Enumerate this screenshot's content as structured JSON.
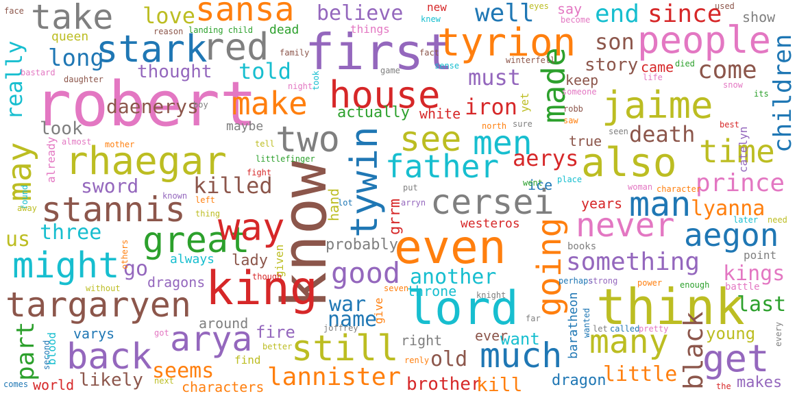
{
  "palette": {
    "blue": "#1f77b4",
    "orange": "#ff7f0e",
    "green": "#2ca02c",
    "red": "#d62728",
    "purple": "#9467bd",
    "brown": "#8c564b",
    "pink": "#e377c2",
    "gray": "#7f7f7f",
    "olive": "#bcbd22",
    "cyan": "#17becf"
  },
  "words": [
    {
      "id": "robert",
      "text": "robert",
      "color": "pink"
    },
    {
      "id": "know",
      "text": "know",
      "color": "brown"
    },
    {
      "id": "even",
      "text": "even",
      "color": "orange"
    },
    {
      "id": "king",
      "text": "king",
      "color": "red"
    },
    {
      "id": "think",
      "text": "think",
      "color": "olive"
    },
    {
      "id": "first",
      "text": "first",
      "color": "purple"
    },
    {
      "id": "tyrion",
      "text": "tyrion",
      "color": "orange"
    },
    {
      "id": "also",
      "text": "also",
      "color": "olive"
    },
    {
      "id": "lord",
      "text": "lord",
      "color": "cyan"
    },
    {
      "id": "rhaegar",
      "text": "rhaegar",
      "color": "olive"
    },
    {
      "id": "targaryen",
      "text": "targaryen",
      "color": "brown"
    },
    {
      "id": "stark",
      "text": "stark",
      "color": "blue"
    },
    {
      "id": "red",
      "text": "red",
      "color": "gray"
    },
    {
      "id": "people",
      "text": "people",
      "color": "pink"
    },
    {
      "id": "jaime",
      "text": "jaime",
      "color": "olive"
    },
    {
      "id": "house",
      "text": "house",
      "color": "red"
    },
    {
      "id": "cersei",
      "text": "cersei",
      "color": "gray"
    },
    {
      "id": "take",
      "text": "take",
      "color": "gray"
    },
    {
      "id": "sansa",
      "text": "sansa",
      "color": "orange"
    },
    {
      "id": "stannis",
      "text": "stannis",
      "color": "brown"
    },
    {
      "id": "great",
      "text": "great",
      "color": "green"
    },
    {
      "id": "might",
      "text": "might",
      "color": "cyan"
    },
    {
      "id": "still",
      "text": "still",
      "color": "olive"
    },
    {
      "id": "much",
      "text": "much",
      "color": "blue"
    },
    {
      "id": "many",
      "text": "many",
      "color": "olive"
    },
    {
      "id": "arya",
      "text": "arya",
      "color": "purple"
    },
    {
      "id": "back",
      "text": "back",
      "color": "purple"
    },
    {
      "id": "going",
      "text": "going",
      "color": "orange"
    },
    {
      "id": "tywin",
      "text": "tywin",
      "color": "blue"
    },
    {
      "id": "may",
      "text": "may",
      "color": "olive"
    },
    {
      "id": "way",
      "text": "way",
      "color": "red"
    },
    {
      "id": "make",
      "text": "make",
      "color": "orange"
    },
    {
      "id": "father",
      "text": "father",
      "color": "cyan"
    },
    {
      "id": "see",
      "text": "see",
      "color": "olive"
    },
    {
      "id": "men",
      "text": "men",
      "color": "cyan"
    },
    {
      "id": "two",
      "text": "two",
      "color": "gray"
    },
    {
      "id": "man",
      "text": "man",
      "color": "blue"
    },
    {
      "id": "time",
      "text": "time",
      "color": "olive"
    },
    {
      "id": "never",
      "text": "never",
      "color": "pink"
    },
    {
      "id": "aegon",
      "text": "aegon",
      "color": "blue"
    },
    {
      "id": "get",
      "text": "get",
      "color": "purple"
    },
    {
      "id": "made",
      "text": "made",
      "color": "green"
    },
    {
      "id": "lannister",
      "text": "lannister",
      "color": "orange"
    },
    {
      "id": "good",
      "text": "good",
      "color": "purple"
    },
    {
      "id": "prince",
      "text": "prince",
      "color": "pink"
    },
    {
      "id": "something",
      "text": "something",
      "color": "purple"
    },
    {
      "id": "black",
      "text": "black",
      "color": "brown"
    },
    {
      "id": "part",
      "text": "part",
      "color": "green"
    },
    {
      "id": "children",
      "text": "children",
      "color": "blue"
    },
    {
      "id": "come",
      "text": "come",
      "color": "brown"
    },
    {
      "id": "end",
      "text": "end",
      "color": "cyan"
    },
    {
      "id": "since",
      "text": "since",
      "color": "red"
    },
    {
      "id": "well",
      "text": "well",
      "color": "blue"
    },
    {
      "id": "long",
      "text": "long",
      "color": "blue"
    },
    {
      "id": "love",
      "text": "love",
      "color": "olive"
    },
    {
      "id": "believe",
      "text": "believe",
      "color": "purple"
    },
    {
      "id": "told",
      "text": "told",
      "color": "cyan"
    },
    {
      "id": "really",
      "text": "really",
      "color": "cyan"
    },
    {
      "id": "son",
      "text": "son",
      "color": "brown"
    },
    {
      "id": "must",
      "text": "must",
      "color": "purple"
    },
    {
      "id": "iron",
      "text": "iron",
      "color": "red"
    },
    {
      "id": "daenerys",
      "text": "daenerys",
      "color": "brown"
    },
    {
      "id": "death",
      "text": "death",
      "color": "brown"
    },
    {
      "id": "aerys",
      "text": "aerys",
      "color": "red"
    },
    {
      "id": "sword",
      "text": "sword",
      "color": "purple"
    },
    {
      "id": "killed",
      "text": "killed",
      "color": "brown"
    },
    {
      "id": "lyanna",
      "text": "lyanna",
      "color": "orange"
    },
    {
      "id": "three",
      "text": "three",
      "color": "cyan"
    },
    {
      "id": "us",
      "text": "us",
      "color": "olive"
    },
    {
      "id": "kings",
      "text": "kings",
      "color": "pink"
    },
    {
      "id": "last",
      "text": "last",
      "color": "green"
    },
    {
      "id": "another",
      "text": "another",
      "color": "cyan"
    },
    {
      "id": "war",
      "text": "war",
      "color": "blue"
    },
    {
      "id": "name",
      "text": "name",
      "color": "blue"
    },
    {
      "id": "seems",
      "text": "seems",
      "color": "orange"
    },
    {
      "id": "little",
      "text": "little",
      "color": "orange"
    },
    {
      "id": "old",
      "text": "old",
      "color": "brown"
    },
    {
      "id": "story",
      "text": "story",
      "color": "brown"
    },
    {
      "id": "thought",
      "text": "thought",
      "color": "purple"
    },
    {
      "id": "look",
      "text": "look",
      "color": "gray"
    },
    {
      "id": "go",
      "text": "go",
      "color": "purple"
    },
    {
      "id": "probably",
      "text": "probably",
      "color": "gray"
    },
    {
      "id": "dragons",
      "text": "dragons",
      "color": "purple"
    },
    {
      "id": "lady",
      "text": "lady",
      "color": "brown"
    },
    {
      "id": "always",
      "text": "always",
      "color": "cyan"
    },
    {
      "id": "fire",
      "text": "fire",
      "color": "purple"
    },
    {
      "id": "want",
      "text": "want",
      "color": "cyan"
    },
    {
      "id": "young",
      "text": "young",
      "color": "olive"
    },
    {
      "id": "likely",
      "text": "likely",
      "color": "brown"
    },
    {
      "id": "characters",
      "text": "characters",
      "color": "orange"
    },
    {
      "id": "brother",
      "text": "brother",
      "color": "red"
    },
    {
      "id": "kill",
      "text": "kill",
      "color": "orange"
    },
    {
      "id": "dragon",
      "text": "dragon",
      "color": "blue"
    },
    {
      "id": "makes",
      "text": "makes",
      "color": "purple"
    },
    {
      "id": "world",
      "text": "world",
      "color": "red"
    },
    {
      "id": "varys",
      "text": "varys",
      "color": "blue"
    },
    {
      "id": "around",
      "text": "around",
      "color": "gray"
    },
    {
      "id": "throne",
      "text": "throne",
      "color": "cyan"
    },
    {
      "id": "ever",
      "text": "ever",
      "color": "brown"
    },
    {
      "id": "right",
      "text": "right",
      "color": "gray"
    },
    {
      "id": "actually",
      "text": "actually",
      "color": "green"
    },
    {
      "id": "white",
      "text": "white",
      "color": "red"
    },
    {
      "id": "keep",
      "text": "keep",
      "color": "brown"
    },
    {
      "id": "came",
      "text": "came",
      "color": "red"
    },
    {
      "id": "ice",
      "text": "ice",
      "color": "blue"
    },
    {
      "id": "years",
      "text": "years",
      "color": "red"
    },
    {
      "id": "hand",
      "text": "hand",
      "color": "olive"
    },
    {
      "id": "grrm",
      "text": "grrm",
      "color": "red"
    },
    {
      "id": "westeros",
      "text": "westeros",
      "color": "red"
    },
    {
      "id": "true",
      "text": "true",
      "color": "brown"
    },
    {
      "id": "maybe",
      "text": "maybe",
      "color": "gray"
    },
    {
      "id": "baratheon",
      "text": "baratheon",
      "color": "blue"
    },
    {
      "id": "dead",
      "text": "dead",
      "color": "green"
    },
    {
      "id": "queen",
      "text": "queen",
      "color": "olive"
    },
    {
      "id": "say",
      "text": "say",
      "color": "pink"
    },
    {
      "id": "show",
      "text": "show",
      "color": "gray"
    },
    {
      "id": "new",
      "text": "new",
      "color": "red"
    },
    {
      "id": "things",
      "text": "things",
      "color": "pink"
    },
    {
      "id": "yet",
      "text": "yet",
      "color": "olive"
    },
    {
      "id": "catelyn",
      "text": "catelyn",
      "color": "purple"
    },
    {
      "id": "given",
      "text": "given",
      "color": "olive"
    },
    {
      "id": "give",
      "text": "give",
      "color": "orange"
    },
    {
      "id": "already",
      "text": "already",
      "color": "pink"
    },
    {
      "id": "blood",
      "text": "blood",
      "color": "cyan"
    },
    {
      "id": "find",
      "text": "find",
      "color": "olive"
    },
    {
      "id": "point",
      "text": "point",
      "color": "gray"
    },
    {
      "id": "books",
      "text": "books",
      "color": "gray"
    },
    {
      "id": "battle",
      "text": "battle",
      "color": "pink"
    },
    {
      "id": "face",
      "text": "face",
      "color": "brown"
    },
    {
      "id": "reason",
      "text": "reason",
      "color": "brown"
    },
    {
      "id": "landing child",
      "text": "landing child",
      "color": "green"
    },
    {
      "id": "knew",
      "text": "knew",
      "color": "cyan"
    },
    {
      "id": "eyes",
      "text": "eyes",
      "color": "olive"
    },
    {
      "id": "become",
      "text": "become",
      "color": "pink"
    },
    {
      "id": "used",
      "text": "used",
      "color": "brown"
    },
    {
      "id": "family",
      "text": "family",
      "color": "brown"
    },
    {
      "id": "fact",
      "text": "fact",
      "color": "brown"
    },
    {
      "id": "winterfell",
      "text": "winterfell",
      "color": "brown"
    },
    {
      "id": "bastard",
      "text": "bastard",
      "color": "pink"
    },
    {
      "id": "game",
      "text": "game",
      "color": "gray"
    },
    {
      "id": "sense",
      "text": "sense",
      "color": "cyan"
    },
    {
      "id": "died",
      "text": "died",
      "color": "green"
    },
    {
      "id": "daughter",
      "text": "daughter",
      "color": "brown"
    },
    {
      "id": "life",
      "text": "life",
      "color": "pink"
    },
    {
      "id": "snow",
      "text": "snow",
      "color": "pink"
    },
    {
      "id": "its",
      "text": "its",
      "color": "green"
    },
    {
      "id": "night",
      "text": "night",
      "color": "pink"
    },
    {
      "id": "took",
      "text": "took",
      "color": "cyan"
    },
    {
      "id": "someone",
      "text": "someone",
      "color": "pink"
    },
    {
      "id": "boy",
      "text": "boy",
      "color": "gray"
    },
    {
      "id": "robb",
      "text": "robb",
      "color": "brown"
    },
    {
      "id": "saw",
      "text": "saw",
      "color": "orange"
    },
    {
      "id": "north",
      "text": "north",
      "color": "orange"
    },
    {
      "id": "sure",
      "text": "sure",
      "color": "gray"
    },
    {
      "id": "best",
      "text": "best",
      "color": "red"
    },
    {
      "id": "almost",
      "text": "almost",
      "color": "pink"
    },
    {
      "id": "mother",
      "text": "mother",
      "color": "orange"
    },
    {
      "id": "seen",
      "text": "seen",
      "color": "gray"
    },
    {
      "id": "tell",
      "text": "tell",
      "color": "olive"
    },
    {
      "id": "littlefinger",
      "text": "littlefinger",
      "color": "green"
    },
    {
      "id": "fight",
      "text": "fight",
      "color": "red"
    },
    {
      "id": "found",
      "text": "found",
      "color": "cyan"
    },
    {
      "id": "known",
      "text": "known",
      "color": "purple"
    },
    {
      "id": "left",
      "text": "left",
      "color": "orange"
    },
    {
      "id": "put",
      "text": "put",
      "color": "gray"
    },
    {
      "id": "went",
      "text": "went",
      "color": "green"
    },
    {
      "id": "place",
      "text": "place",
      "color": "cyan"
    },
    {
      "id": "woman",
      "text": "woman",
      "color": "pink"
    },
    {
      "id": "character",
      "text": "character",
      "color": "orange"
    },
    {
      "id": "away",
      "text": "away",
      "color": "olive"
    },
    {
      "id": "thing",
      "text": "thing",
      "color": "olive"
    },
    {
      "id": "lot",
      "text": "lot",
      "color": "blue"
    },
    {
      "id": "arryn",
      "text": "arryn",
      "color": "purple"
    },
    {
      "id": "later",
      "text": "later",
      "color": "cyan"
    },
    {
      "id": "need",
      "text": "need",
      "color": "olive"
    },
    {
      "id": "others",
      "text": "others",
      "color": "orange"
    },
    {
      "id": "without",
      "text": "without",
      "color": "olive"
    },
    {
      "id": "though",
      "text": "though",
      "color": "red"
    },
    {
      "id": "perhaps",
      "text": "perhaps",
      "color": "blue"
    },
    {
      "id": "strong",
      "text": "strong",
      "color": "purple"
    },
    {
      "id": "power",
      "text": "power",
      "color": "orange"
    },
    {
      "id": "enough",
      "text": "enough",
      "color": "green"
    },
    {
      "id": "seven",
      "text": "seven",
      "color": "orange"
    },
    {
      "id": "knight",
      "text": "knight",
      "color": "gray"
    },
    {
      "id": "far",
      "text": "far",
      "color": "gray"
    },
    {
      "id": "wanted",
      "text": "wanted",
      "color": "blue"
    },
    {
      "id": "let",
      "text": "let",
      "color": "gray"
    },
    {
      "id": "called",
      "text": "called",
      "color": "blue"
    },
    {
      "id": "pretty",
      "text": "pretty",
      "color": "pink"
    },
    {
      "id": "every",
      "text": "every",
      "color": "gray"
    },
    {
      "id": "second",
      "text": "second",
      "color": "blue"
    },
    {
      "id": "got",
      "text": "got",
      "color": "pink"
    },
    {
      "id": "better",
      "text": "better",
      "color": "olive"
    },
    {
      "id": "joffrey",
      "text": "joffrey",
      "color": "gray"
    },
    {
      "id": "renly",
      "text": "renly",
      "color": "orange"
    },
    {
      "id": "comes",
      "text": "comes",
      "color": "blue"
    },
    {
      "id": "next",
      "text": "next",
      "color": "olive"
    },
    {
      "id": "the",
      "text": "the",
      "color": "red"
    }
  ]
}
